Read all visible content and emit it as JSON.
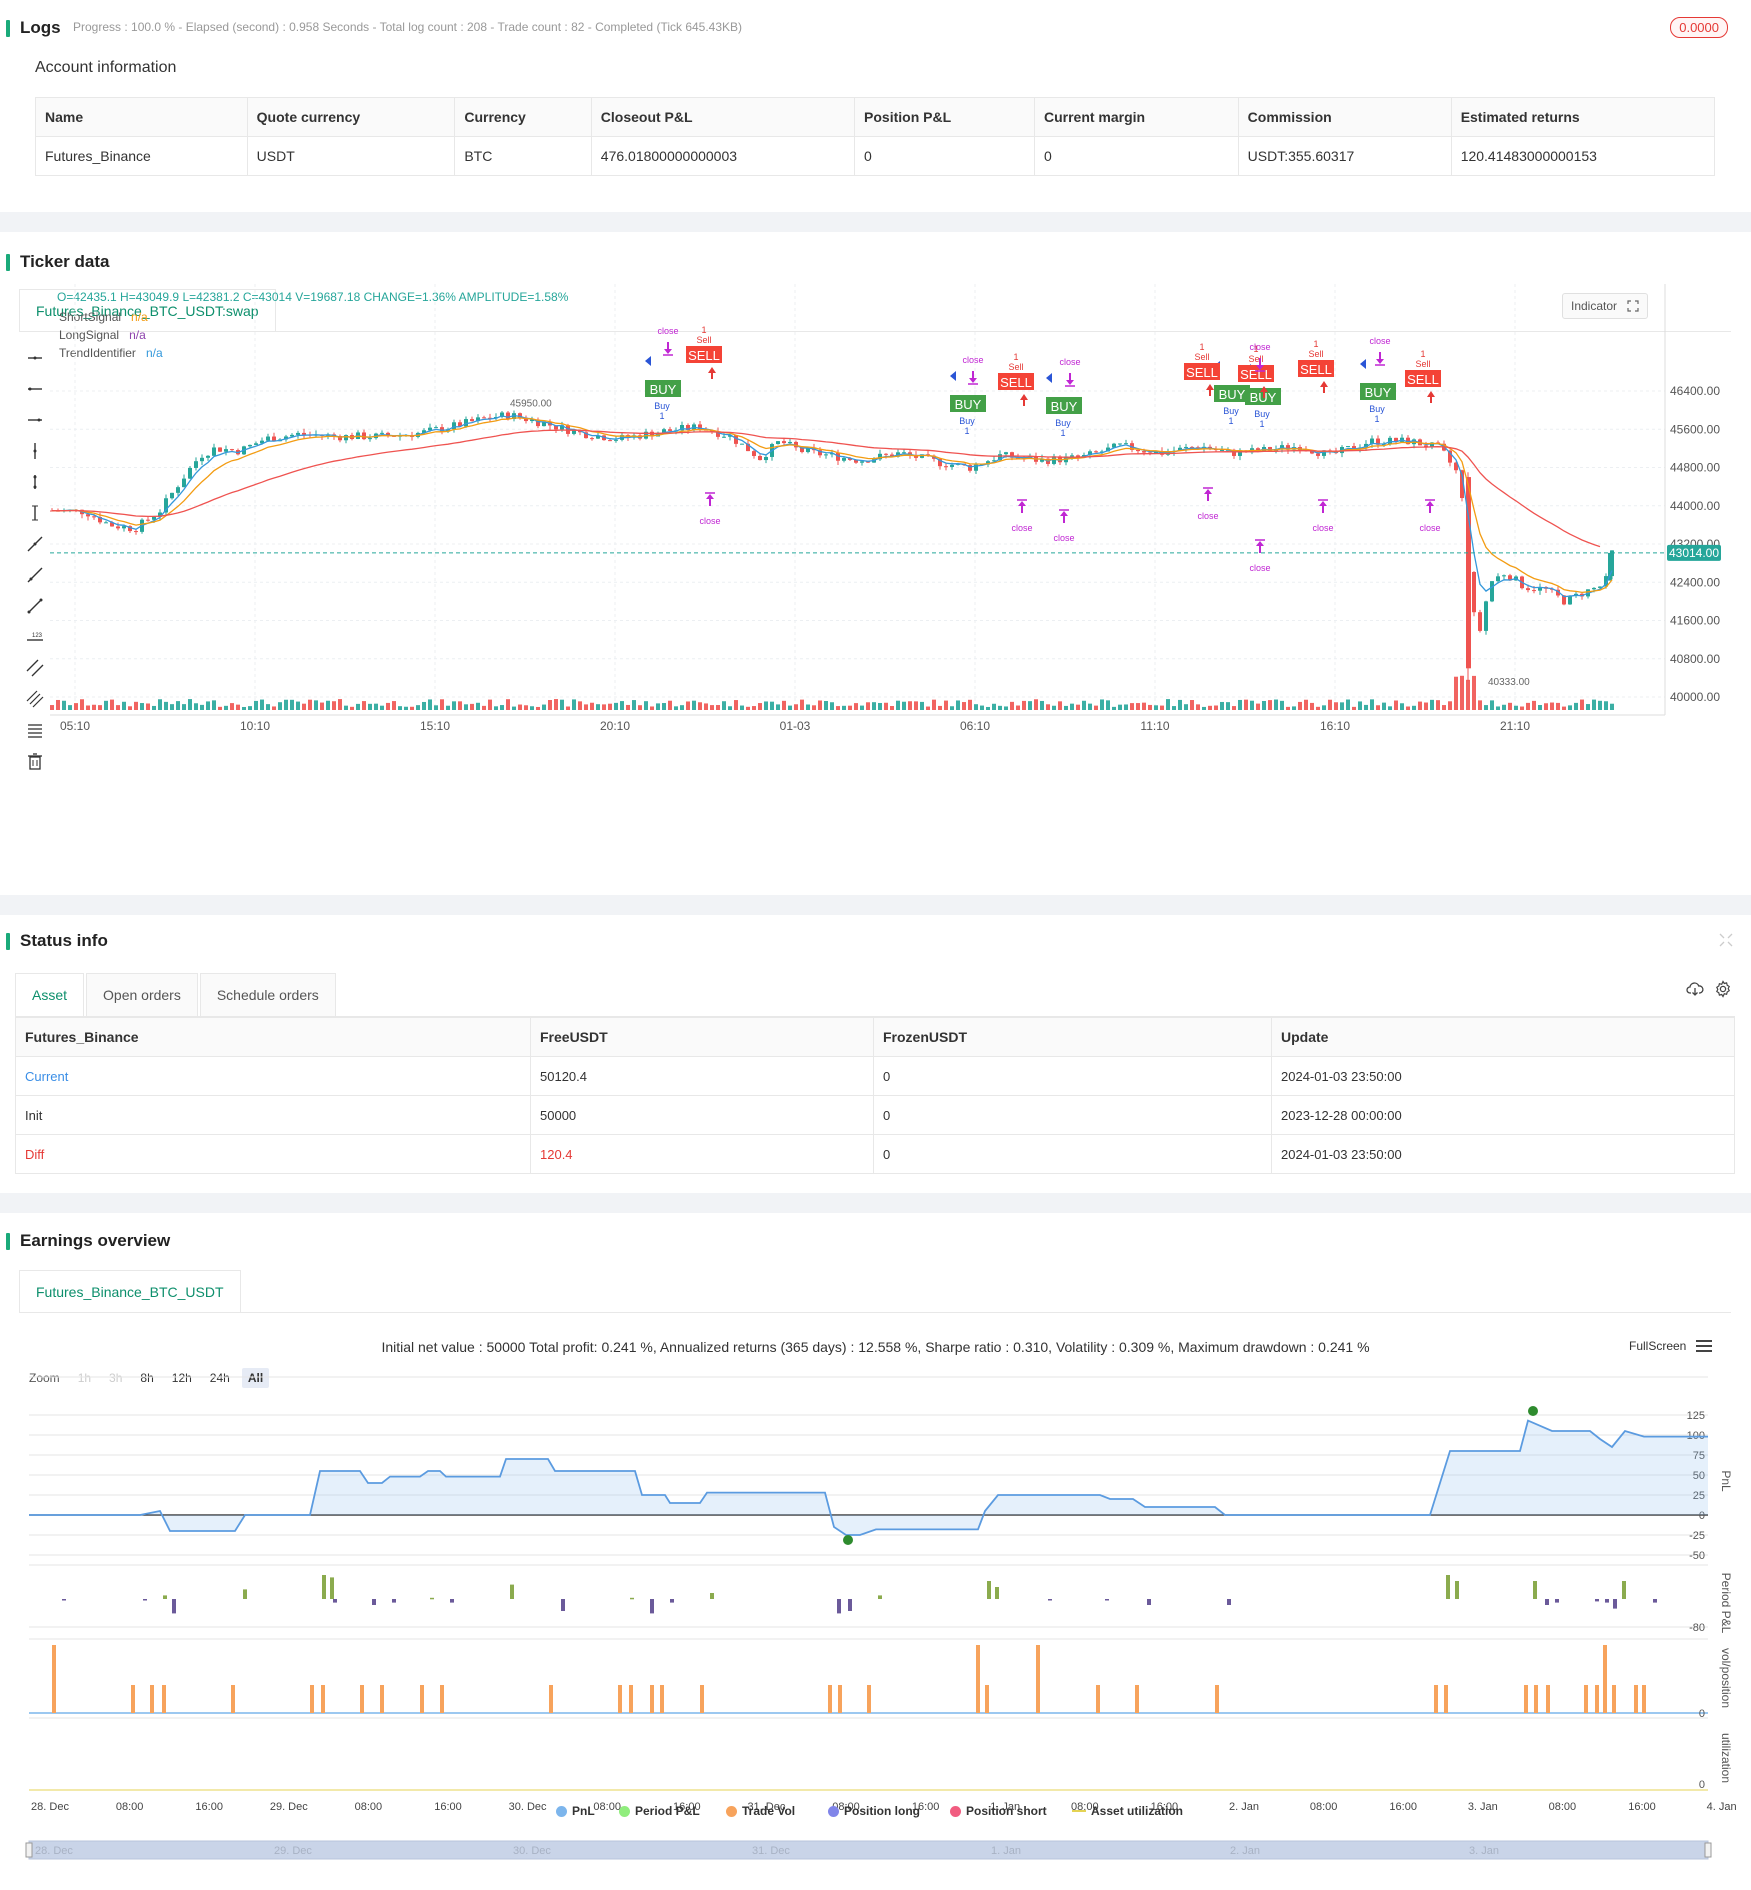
{
  "logs": {
    "title": "Logs",
    "summary": "Progress : 100.0 % - Elapsed (second) : 0.958  Seconds - Total log count : 208 - Trade count : 82 - Completed (Tick 645.43KB)",
    "badge": "0.0000"
  },
  "account": {
    "title": "Account information",
    "headers": [
      "Name",
      "Quote currency",
      "Currency",
      "Closeout P&L",
      "Position P&L",
      "Current margin",
      "Commission",
      "Estimated returns"
    ],
    "row": [
      "Futures_Binance",
      "USDT",
      "BTC",
      "476.01800000000003",
      "0",
      "0",
      "USDT:355.60317",
      "120.41483000000153"
    ]
  },
  "ticker": {
    "title": "Ticker data",
    "tab": "Futures_Binance_BTC_USDT:swap",
    "ohlc": "O=42435.1 H=43049.9 L=42381.2 C=43014 V=19687.18 CHANGE=1.36% AMPLITUDE=1.58%",
    "indicators": [
      {
        "name": "ShortSignal",
        "value": "n/a",
        "color": "#f39c12"
      },
      {
        "name": "LongSignal",
        "value": "n/a",
        "color": "#8e44ad"
      },
      {
        "name": "TrendIdentifier",
        "value": "n/a",
        "color": "#3498db"
      }
    ],
    "indicator_button": "Indicator",
    "price_ticks": [
      "46400.00",
      "45600.00",
      "44800.00",
      "44000.00",
      "43200.00",
      "42400.00",
      "41600.00",
      "40800.00",
      "40000.00"
    ],
    "time_ticks": [
      "05:10",
      "10:10",
      "15:10",
      "20:10",
      "01-03",
      "06:10",
      "11:10",
      "16:10",
      "21:10"
    ],
    "last_price": "43014.00",
    "high_label": "45950.00",
    "low_label": "40333.00",
    "markers": {
      "buy": "BUY",
      "sell": "SELL",
      "close": "close",
      "long": "Buy",
      "short": "Sell",
      "qty": "1"
    }
  },
  "status": {
    "title": "Status info",
    "tabs": [
      "Asset",
      "Open orders",
      "Schedule orders"
    ],
    "headers": [
      "Futures_Binance",
      "FreeUSDT",
      "FrozenUSDT",
      "Update"
    ],
    "rows": [
      [
        "Current",
        "50120.4",
        "0",
        "2024-01-03 23:50:00"
      ],
      [
        "Init",
        "50000",
        "0",
        "2023-12-28 00:00:00"
      ],
      [
        "Diff",
        "120.4",
        "0",
        "2024-01-03 23:50:00"
      ]
    ]
  },
  "earnings": {
    "title": "Earnings overview",
    "tab": "Futures_Binance_BTC_USDT",
    "summary": "Initial net value : 50000 Total profit: 0.241 %, Annualized returns (365 days) : 12.558 %, Sharpe ratio : 0.310, Volatility : 0.309 %, Maximum drawdown : 0.241 %",
    "fullscreen": "FullScreen",
    "zoom_label": "Zoom",
    "zoom_buttons": [
      "1h",
      "3h",
      "8h",
      "12h",
      "24h",
      "All"
    ],
    "pnl_ticks": [
      "125",
      "100",
      "75",
      "50",
      "25",
      "0",
      "-25",
      "-50"
    ],
    "period_tick": "-80",
    "vol_tick": "0",
    "util_tick": "0",
    "axis_titles": [
      "PnL",
      "Period P&L",
      "vol/position",
      "utilization"
    ],
    "date_ticks": [
      "28. Dec",
      "08:00",
      "16:00",
      "29. Dec",
      "08:00",
      "16:00",
      "30. Dec",
      "08:00",
      "16:00",
      "31. Dec",
      "08:00",
      "16:00",
      "1. Jan",
      "08:00",
      "16:00",
      "2. Jan",
      "08:00",
      "16:00",
      "3. Jan",
      "08:00",
      "16:00",
      "4. Jan"
    ],
    "nav_ticks": [
      "28. Dec",
      "29. Dec",
      "30. Dec",
      "31. Dec",
      "1. Jan",
      "2. Jan",
      "3. Jan"
    ],
    "legend": [
      {
        "label": "PnL",
        "color": "#7cb5ec"
      },
      {
        "label": "Period P&L",
        "color": "#90ed7d"
      },
      {
        "label": "Trade Vol",
        "color": "#f7a35c"
      },
      {
        "label": "Position long",
        "color": "#8085e9"
      },
      {
        "label": "Position short",
        "color": "#f15c80"
      },
      {
        "label": "Asset utilization",
        "color": "#e4d354"
      }
    ]
  },
  "colors": {
    "accent": "#1aaa7a",
    "up": "#26a69a",
    "down": "#ef5350",
    "buy": "#4caf50",
    "sell": "#f44336"
  }
}
